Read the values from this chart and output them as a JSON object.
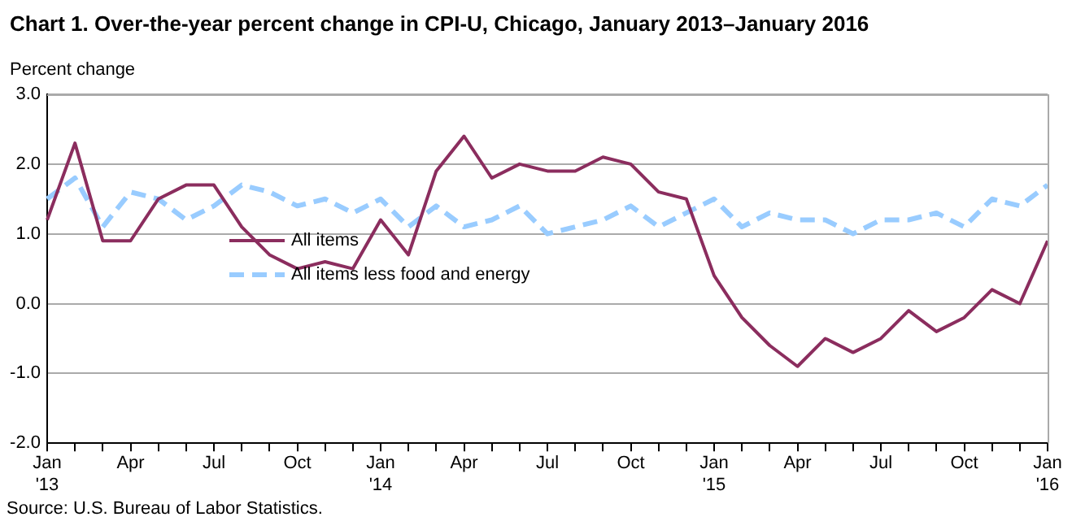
{
  "chart_data": {
    "type": "line",
    "title": "Chart 1. Over-the-year percent change in CPI-U, Chicago, January 2013–January 2016",
    "ylabel": "Percent change",
    "categories": [
      "Jan\n'13",
      null,
      null,
      "Apr",
      null,
      null,
      "Jul",
      null,
      null,
      "Oct",
      null,
      null,
      "Jan\n'14",
      null,
      null,
      "Apr",
      null,
      null,
      "Jul",
      null,
      null,
      "Oct",
      null,
      null,
      "Jan\n'15",
      null,
      null,
      "Apr",
      null,
      null,
      "Jul",
      null,
      null,
      "Oct",
      null,
      null,
      "Jan\n'16"
    ],
    "series": [
      {
        "name": "All items",
        "color": "#8b2d5e",
        "line_style": "solid",
        "values": [
          1.2,
          2.3,
          0.9,
          0.9,
          1.5,
          1.7,
          1.7,
          1.1,
          0.7,
          0.5,
          0.6,
          0.5,
          1.2,
          0.7,
          1.9,
          2.4,
          1.8,
          2.0,
          1.9,
          1.9,
          2.1,
          2.0,
          1.6,
          1.5,
          0.4,
          -0.2,
          -0.6,
          -0.9,
          -0.5,
          -0.7,
          -0.5,
          -0.1,
          -0.4,
          -0.2,
          0.2,
          0.0,
          0.9
        ]
      },
      {
        "name": "All items less food and energy",
        "color": "#99ccff",
        "line_style": "dashed",
        "values": [
          1.5,
          1.8,
          1.1,
          1.6,
          1.5,
          1.2,
          1.4,
          1.7,
          1.6,
          1.4,
          1.5,
          1.3,
          1.5,
          1.1,
          1.4,
          1.1,
          1.2,
          1.4,
          1.0,
          1.1,
          1.2,
          1.4,
          1.1,
          1.3,
          1.5,
          1.1,
          1.3,
          1.2,
          1.2,
          1.0,
          1.2,
          1.2,
          1.3,
          1.1,
          1.5,
          1.4,
          1.7
        ]
      }
    ],
    "ylim": [
      -2,
      3
    ],
    "yticks": [
      {
        "value": -2,
        "label": "-2.0"
      },
      {
        "value": -1,
        "label": "-1.0"
      },
      {
        "value": 0,
        "label": "0.0"
      },
      {
        "value": 1,
        "label": "1.0"
      },
      {
        "value": 2,
        "label": "2.0"
      },
      {
        "value": 3,
        "label": "3.0"
      }
    ],
    "grid": "y",
    "legend": "center",
    "marker": "none",
    "annotations": [
      "Source: U.S. Bureau of Labor Statistics."
    ]
  }
}
